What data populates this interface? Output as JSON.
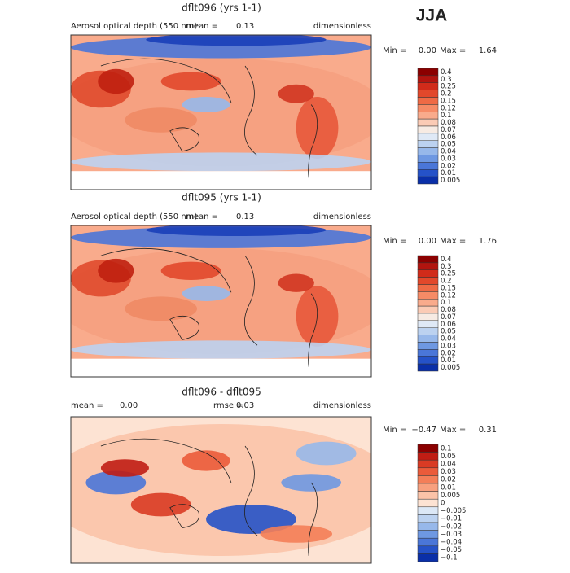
{
  "season": "JJA",
  "panels": [
    {
      "title": "dflt096 (yrs 1-1)",
      "field": "Aerosol optical depth (550 nm)",
      "mean_label": "mean =",
      "mean": "0.13",
      "units": "dimensionless",
      "min_label": "Min =",
      "min": "0.00",
      "max_label": "Max =",
      "max": "1.64",
      "colorbar": {
        "labels": [
          "0.4",
          "0.3",
          "0.25",
          "0.2",
          "0.15",
          "0.12",
          "0.1",
          "0.08",
          "0.07",
          "0.06",
          "0.05",
          "0.04",
          "0.03",
          "0.02",
          "0.01",
          "0.005"
        ],
        "colors": [
          "#8b0000",
          "#b2140f",
          "#d12b1a",
          "#e2482b",
          "#ef6a45",
          "#f68b66",
          "#f9ab8c",
          "#fbcbb5",
          "#f7ebe3",
          "#dfe9f6",
          "#bcd2f0",
          "#97b8ea",
          "#6e98e2",
          "#4a76d8",
          "#2552c8",
          "#0a2fa8"
        ]
      }
    },
    {
      "title": "dflt095 (yrs 1-1)",
      "field": "Aerosol optical depth (550 nm)",
      "mean_label": "mean =",
      "mean": "0.13",
      "units": "dimensionless",
      "min_label": "Min =",
      "min": "0.00",
      "max_label": "Max =",
      "max": "1.76",
      "colorbar": {
        "labels": [
          "0.4",
          "0.3",
          "0.25",
          "0.2",
          "0.15",
          "0.12",
          "0.1",
          "0.08",
          "0.07",
          "0.06",
          "0.05",
          "0.04",
          "0.03",
          "0.02",
          "0.01",
          "0.005"
        ],
        "colors": [
          "#8b0000",
          "#b2140f",
          "#d12b1a",
          "#e2482b",
          "#ef6a45",
          "#f68b66",
          "#f9ab8c",
          "#fbcbb5",
          "#f7ebe3",
          "#dfe9f6",
          "#bcd2f0",
          "#97b8ea",
          "#6e98e2",
          "#4a76d8",
          "#2552c8",
          "#0a2fa8"
        ]
      }
    },
    {
      "title": "dflt096 - dflt095",
      "mean_label": "mean =",
      "mean": "0.00",
      "rmse_label": "rmse =",
      "rmse": "0.03",
      "units": "dimensionless",
      "min_label": "Min =",
      "min": "−0.47",
      "max_label": "Max =",
      "max": "0.31",
      "colorbar": {
        "labels": [
          "0.1",
          "0.05",
          "0.04",
          "0.03",
          "0.02",
          "0.01",
          "0.005",
          "0",
          "−0.005",
          "−0.01",
          "−0.02",
          "−0.03",
          "−0.04",
          "−0.05",
          "−0.1"
        ],
        "colors": [
          "#8b0000",
          "#c01d14",
          "#d93b24",
          "#eb5b3a",
          "#f47e58",
          "#f8a07e",
          "#fbc3a8",
          "#fde3d3",
          "#dce8f6",
          "#bcd2f0",
          "#97b8ea",
          "#6e98e2",
          "#4a76d8",
          "#2552c8",
          "#0a2fa8"
        ]
      }
    }
  ]
}
